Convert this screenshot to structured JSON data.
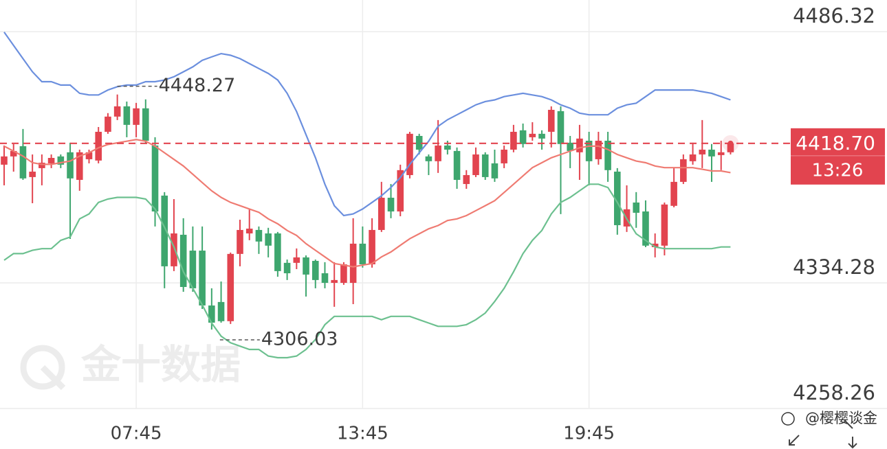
{
  "chart_data": {
    "type": "candlestick",
    "categories": [
      null,
      null,
      null,
      null,
      null,
      null,
      null,
      null,
      null,
      null,
      null,
      null,
      null,
      null,
      "07:45",
      null,
      null,
      null,
      null,
      null,
      null,
      null,
      null,
      null,
      null,
      null,
      null,
      null,
      null,
      null,
      null,
      null,
      null,
      null,
      null,
      null,
      null,
      null,
      "13:45",
      null,
      null,
      null,
      null,
      null,
      null,
      null,
      null,
      null,
      null,
      null,
      null,
      null,
      null,
      null,
      null,
      null,
      null,
      null,
      null,
      null,
      null,
      null,
      "19:45",
      null,
      null,
      null,
      null,
      null,
      null,
      null,
      null,
      null,
      null,
      null,
      null,
      null,
      null,
      null
    ],
    "open": [
      4405.8,
      4410.8,
      4417.0,
      4398.3,
      4403.7,
      4406.6,
      4410.8,
      4413.3,
      4396.6,
      4409.1,
      4408.3,
      4425.7,
      4434.9,
      4441.1,
      4429.9,
      4439.9,
      4417.4,
      4387.1,
      4344.3,
      4363.4,
      4353.8,
      4353.8,
      4320.6,
      4322.7,
      4311.1,
      4351.8,
      4364.2,
      4366.3,
      4364.2,
      4364.2,
      4346.4,
      4346.4,
      4349.7,
      4347.6,
      4340.1,
      4334.3,
      4334.3,
      4334.3,
      4358.0,
      4345.5,
      4366.3,
      4385.8,
      4377.5,
      4399.5,
      4423.2,
      4410.8,
      4407.9,
      4417.4,
      4414.1,
      4394.1,
      4399.5,
      4412.0,
      4406.6,
      4406.6,
      4414.9,
      4426.6,
      4422.4,
      4424.5,
      4425.7,
      4438.2,
      4419.1,
      4413.3,
      4420.3,
      4409.1,
      4420.3,
      4401.6,
      4368.4,
      4382.9,
      4377.5,
      4355.9,
      4356.8,
      4380.9,
      4395.4,
      4407.9,
      4412.0,
      4414.9,
      4411.6,
      4413.3
    ],
    "high": [
      4417.4,
      4418.3,
      4427.4,
      4412.0,
      4412.0,
      4412.0,
      4412.0,
      4419.1,
      4414.9,
      4414.9,
      4428.6,
      4437.0,
      4448.27,
      4444.0,
      4443.2,
      4445.3,
      4422.4,
      4389.2,
      4385.0,
      4373.4,
      4368.4,
      4368.4,
      4331.0,
      4335.1,
      4352.6,
      4372.5,
      4378.8,
      4368.4,
      4367.6,
      4365.1,
      4348.4,
      4355.1,
      4350.9,
      4348.4,
      4346.8,
      4346.8,
      4346.8,
      4373.4,
      4368.4,
      4373.4,
      4395.4,
      4394.1,
      4405.8,
      4425.7,
      4424.5,
      4412.0,
      4432.8,
      4420.3,
      4416.2,
      4402.5,
      4416.2,
      4413.3,
      4414.9,
      4417.4,
      4429.9,
      4430.7,
      4431.5,
      4426.6,
      4441.1,
      4441.1,
      4423.2,
      4429.9,
      4425.7,
      4425.7,
      4425.7,
      4403.7,
      4393.3,
      4389.2,
      4384.2,
      4364.2,
      4382.9,
      4403.7,
      4412.0,
      4419.1,
      4432.8,
      4418.3,
      4420.3,
      4420.3
    ],
    "low": [
      4393.3,
      4401.6,
      4396.6,
      4382.5,
      4393.3,
      4403.7,
      4403.7,
      4360.9,
      4390.0,
      4406.6,
      4406.6,
      4424.5,
      4432.8,
      4422.4,
      4422.4,
      4418.3,
      4368.4,
      4331.0,
      4341.4,
      4328.9,
      4328.9,
      4318.5,
      4306.03,
      4310.2,
      4309.4,
      4344.3,
      4360.1,
      4351.8,
      4349.7,
      4338.0,
      4336.0,
      4342.6,
      4326.0,
      4331.0,
      4331.0,
      4319.8,
      4333.1,
      4321.4,
      4343.5,
      4343.5,
      4365.1,
      4373.4,
      4374.6,
      4397.5,
      4412.0,
      4399.5,
      4400.8,
      4412.0,
      4391.2,
      4391.2,
      4398.3,
      4396.6,
      4395.4,
      4403.7,
      4413.3,
      4416.2,
      4420.3,
      4414.9,
      4416.2,
      4375.9,
      4403.7,
      4396.6,
      4393.3,
      4405.8,
      4395.4,
      4363.4,
      4365.1,
      4367.6,
      4355.9,
      4349.7,
      4350.9,
      4380.0,
      4394.1,
      4405.8,
      4403.7,
      4395.4,
      4402.5,
      4412.0
    ],
    "close": [
      4410.8,
      4414.1,
      4397.5,
      4401.6,
      4407.0,
      4409.9,
      4405.8,
      4397.5,
      4413.3,
      4413.3,
      4425.7,
      4434.9,
      4441.1,
      4429.9,
      4439.9,
      4420.3,
      4377.5,
      4344.3,
      4364.2,
      4331.8,
      4331.0,
      4320.6,
      4310.2,
      4311.1,
      4351.8,
      4366.3,
      4367.1,
      4359.3,
      4356.8,
      4341.4,
      4340.1,
      4349.7,
      4339.3,
      4336.0,
      4334.3,
      4336.0,
      4345.5,
      4358.0,
      4345.5,
      4366.3,
      4385.8,
      4377.5,
      4402.5,
      4424.5,
      4414.9,
      4407.9,
      4417.4,
      4414.9,
      4396.6,
      4399.5,
      4412.0,
      4398.3,
      4397.5,
      4414.9,
      4425.7,
      4418.3,
      4424.5,
      4421.6,
      4439.0,
      4418.3,
      4414.1,
      4421.6,
      4407.9,
      4420.3,
      4402.5,
      4369.2,
      4378.8,
      4376.7,
      4356.8,
      4358.0,
      4381.7,
      4395.4,
      4409.1,
      4412.0,
      4414.9,
      4410.8,
      4413.3,
      4418.7
    ],
    "up_color": "#e2444f",
    "down_color": "#3ea66e",
    "lines": [
      {
        "color": "#6b8fde",
        "values": [
          4486,
          4478,
          4470,
          4462,
          4456,
          4456,
          4454,
          4454,
          4449,
          4448,
          4448,
          4451,
          4453,
          4454,
          4454,
          4456,
          4456,
          4457,
          4459,
          4462,
          4465,
          4469,
          4471,
          4473,
          4472,
          4470,
          4467,
          4464,
          4461,
          4457,
          4449,
          4438,
          4424,
          4410,
          4394,
          4381,
          4375,
          4376,
          4379,
          4383,
          4387,
          4392,
          4398,
          4406,
          4413,
          4420,
          4429,
          4433,
          4436,
          4439,
          4442,
          4444,
          4445,
          4447,
          4448,
          4449,
          4448,
          4447,
          4445,
          4442,
          4440,
          4437,
          4436,
          4436,
          4436,
          4440,
          4442,
          4443,
          4447,
          4451,
          4451,
          4451,
          4451,
          4451,
          4450,
          4449,
          4447,
          4445
        ]
      },
      {
        "color": "#ef7b72",
        "values": [
          4417,
          4414,
          4411,
          4407,
          4406,
          4406,
          4407,
          4408,
          4411,
          4413,
          4416,
          4418,
          4419,
          4420,
          4421,
          4420,
          4417,
          4413,
          4409,
          4405,
          4400,
          4395,
          4390,
          4386,
          4383,
          4381,
          4379,
          4377,
          4373,
          4370,
          4366,
          4363,
          4358,
          4354,
          4350,
          4346,
          4345,
          4344,
          4345,
          4346,
          4350,
          4353,
          4357,
          4361,
          4364,
          4367,
          4369,
          4372,
          4373,
          4375,
          4378,
          4381,
          4384,
          4389,
          4394,
          4399,
          4404,
          4407,
          4410,
          4412,
          4414,
          4416,
          4417,
          4417,
          4415,
          4412,
          4410,
          4408,
          4407,
          4405,
          4404,
          4404,
          4404,
          4404,
          4403,
          4402,
          4402,
          4401
        ]
      },
      {
        "color": "#6cc08f",
        "values": [
          4348,
          4352,
          4352,
          4354,
          4355,
          4355,
          4360,
          4362,
          4373,
          4376,
          4383,
          4385,
          4386,
          4386,
          4386,
          4385,
          4379,
          4368,
          4356,
          4341,
          4331,
          4321,
          4310,
          4302,
          4298,
          4296,
          4294,
          4294,
          4290,
          4289,
          4289,
          4290,
          4294,
          4300,
          4309,
          4314,
          4314,
          4314,
          4314,
          4314,
          4312,
          4314,
          4314,
          4314,
          4312,
          4310,
          4308,
          4308,
          4308,
          4309,
          4312,
          4316,
          4323,
          4331,
          4341,
          4352,
          4360,
          4366,
          4376,
          4383,
          4386,
          4390,
          4394,
          4394,
          4392,
          4383,
          4373,
          4364,
          4360,
          4356,
          4355,
          4355,
          4355,
          4355,
          4355,
          4355,
          4356,
          4356
        ]
      }
    ],
    "ylim": [
      4258.26,
      4505.46
    ],
    "yticks": [
      4258.26,
      4334.28,
      4486.32
    ],
    "grid": true,
    "high_label": 4448.27,
    "low_label": 4306.03,
    "last_price": {
      "value": 4418.7,
      "label": "4418.70"
    },
    "countdown": "13:26",
    "watermark": "金十数据",
    "credit": "@樱樱谈金"
  }
}
